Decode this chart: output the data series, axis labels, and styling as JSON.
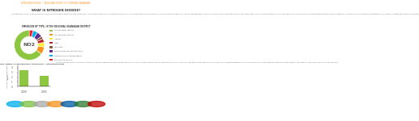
{
  "page_title_prefix": "NITROGEN DIOXIDE",
  "page_title_sep": "•",
  "page_title_suffix": "REGIONAL DISTRICT OF CENTRAL OKANAGAN",
  "section_header": "WHAT IS NITROGEN DIOXIDE?",
  "body_text": "Nitrogen dioxide (NO2) is one of a group of highly reactive gases known as nitrogen oxides (NOx). NO2 primarily gets in the air from the burning of fuel. NO2 forms from emissions from cars, trucks and buses, power plants, and off-road equipment. Breathing air with a high concentration of NO2 can irritate airways in the human respiratory system. Such exposures over short periods can aggravate respiratory diseases, particularly asthma, leading to respiratory symptoms (such as coughing, wheezing or difficulty breathing).",
  "donut_title": "EMISSIONS BY TYPE, IN THE REGIONAL OKANAGAN DISTRICT",
  "donut_values": [
    65,
    8,
    5,
    4,
    3,
    6,
    5,
    4
  ],
  "donut_colors": [
    "#8dc63f",
    "#f7941d",
    "#f9ed32",
    "#be1e2d",
    "#8b5e3c",
    "#662d91",
    "#00aeef",
    "#ed1c24"
  ],
  "donut_labels": [
    "On-road motor vehicles",
    "Off-road motor vehicles",
    "Industry",
    "Dust",
    "Agriculture",
    "Commercial/Residential/Institutional",
    "Open source (non-anthropogenic)",
    "Other mobile sources"
  ],
  "center_label": "NO2",
  "bar_title": "NO2 TREND IN THE REGIONAL OKANAGAN - CONCENTRATIONS",
  "bar_years": [
    "2000",
    "2005"
  ],
  "bar_values": [
    3.5,
    2.2
  ],
  "bar_color": "#8dc63f",
  "bar_ylim": [
    0,
    4.5
  ],
  "bar_yticks": [
    0,
    1,
    2,
    3,
    4
  ],
  "bar_ylabel": "Annual Avg Concentration\n(μg/m³)",
  "right_text": "The concentration of NO2 in the Regional District of Central Okanagan has been tracked over time. Ground-level monitoring has shown changes in NO2 levels. The trend shows that concentrations have decreased. This reflects improvements in vehicle emissions technology and other emission reduction efforts in the region. Continued monitoring remains important.",
  "logo_colors": [
    "#00aeef",
    "#7bc143",
    "#aaaaaa",
    "#f7941d",
    "#005baa",
    "#2e7d32",
    "#c00000"
  ],
  "header_color": "#f7941d",
  "header_text_color": "#f7941d",
  "bg_color": "#ffffff",
  "text_color": "#555555",
  "light_gray": "#e8e8e8",
  "footer_bg": "#f2f2f2"
}
